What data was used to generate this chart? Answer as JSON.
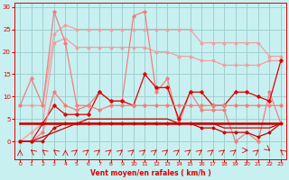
{
  "xlabel": "Vent moyen/en rafales ( km/h )",
  "bg_color": "#c8f0f0",
  "grid_color": "#a0d0d0",
  "x": [
    0,
    1,
    2,
    3,
    4,
    5,
    6,
    7,
    8,
    9,
    10,
    11,
    12,
    13,
    14,
    15,
    16,
    17,
    18,
    19,
    20,
    21,
    22,
    23
  ],
  "line_rafales_max": [
    8,
    14,
    8,
    29,
    22,
    8,
    8,
    11,
    9,
    9,
    28,
    29,
    11,
    14,
    4,
    11,
    7,
    7,
    7,
    0,
    2,
    0,
    11,
    4
  ],
  "line_moy_max": [
    8,
    8,
    8,
    24,
    26,
    25,
    25,
    25,
    25,
    25,
    25,
    25,
    25,
    25,
    25,
    25,
    22,
    22,
    22,
    22,
    22,
    22,
    19,
    19
  ],
  "line_moy_smooth": [
    0,
    2,
    4,
    22,
    23,
    21,
    21,
    21,
    21,
    21,
    21,
    21,
    20,
    20,
    19,
    19,
    18,
    18,
    17,
    17,
    17,
    17,
    18,
    18
  ],
  "line_inst": [
    0,
    0,
    4,
    8,
    6,
    6,
    6,
    11,
    9,
    9,
    8,
    15,
    12,
    12,
    5,
    11,
    11,
    8,
    8,
    11,
    11,
    10,
    9,
    18
  ],
  "line_inst2": [
    0,
    0,
    2,
    11,
    8,
    7,
    8,
    7,
    8,
    8,
    8,
    8,
    8,
    8,
    8,
    8,
    8,
    8,
    8,
    8,
    8,
    8,
    8,
    8
  ],
  "line_flat1": [
    4,
    4,
    4,
    4,
    4,
    4,
    4,
    4,
    4,
    4,
    4,
    4,
    4,
    4,
    4,
    4,
    4,
    4,
    4,
    4,
    4,
    4,
    4,
    4
  ],
  "line_flat2": [
    4,
    4,
    4,
    4,
    4,
    4,
    4,
    4,
    4,
    4,
    4,
    4,
    4,
    4,
    4,
    4,
    4,
    4,
    4,
    4,
    4,
    4,
    4,
    4
  ],
  "line_bottom": [
    0,
    0,
    0,
    3,
    4,
    4,
    4,
    4,
    4,
    4,
    4,
    4,
    4,
    4,
    4,
    4,
    3,
    3,
    2,
    2,
    2,
    1,
    2,
    4
  ],
  "line_decay": [
    0,
    0,
    1,
    2,
    3,
    4,
    5,
    5,
    5,
    5,
    5,
    5,
    5,
    5,
    4,
    4,
    4,
    4,
    3,
    3,
    3,
    3,
    3,
    4
  ],
  "arrows_x": [
    0,
    1,
    2,
    3,
    4,
    5,
    6,
    7,
    8,
    9,
    10,
    11,
    12,
    13,
    14,
    15,
    16,
    17,
    18,
    19,
    20,
    21,
    22,
    23
  ],
  "arrows_deg": [
    180,
    225,
    225,
    225,
    180,
    135,
    135,
    135,
    135,
    135,
    135,
    135,
    135,
    135,
    135,
    135,
    135,
    135,
    135,
    135,
    90,
    135,
    45,
    225
  ]
}
